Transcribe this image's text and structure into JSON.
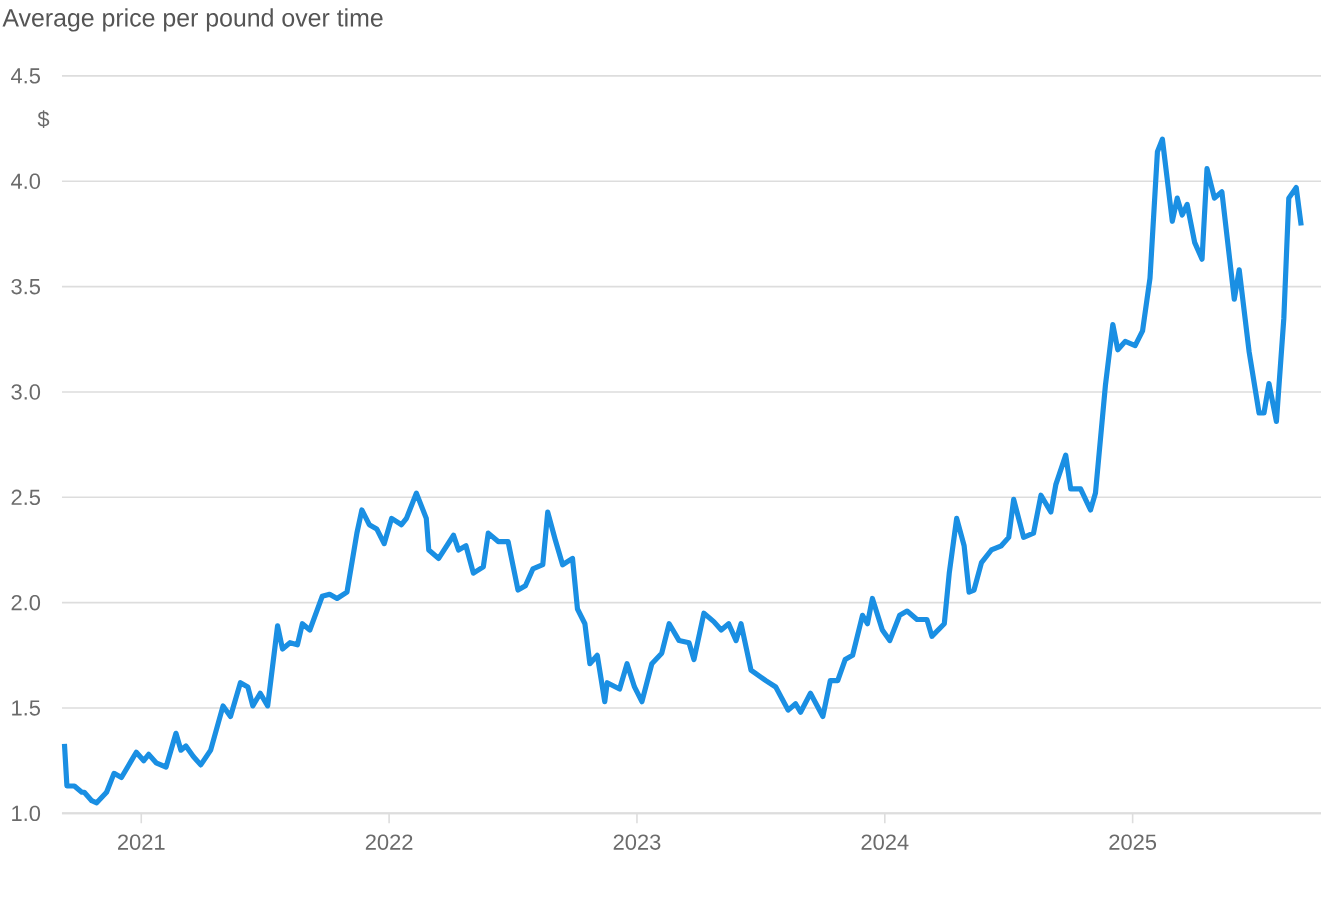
{
  "chart_data": {
    "type": "line",
    "title": "Average price per pound over time",
    "ylabel": "$",
    "xlim": [
      2020.68,
      2025.76
    ],
    "ylim": [
      1.0,
      4.5
    ],
    "xticks": [
      2021,
      2022,
      2023,
      2024,
      2025
    ],
    "yticks": [
      {
        "value": 1.0,
        "label": "1.0"
      },
      {
        "value": 1.5,
        "label": "1.5"
      },
      {
        "value": 2.0,
        "label": "2.0"
      },
      {
        "value": 2.5,
        "label": "2.5"
      },
      {
        "value": 3.0,
        "label": "3.0"
      },
      {
        "value": 3.5,
        "label": "3.5"
      },
      {
        "value": 4.0,
        "label": "4.0"
      },
      {
        "value": 4.5,
        "label": "4.5"
      }
    ],
    "grid": "y",
    "series": [
      {
        "color": "#1a8fe3",
        "x": [
          2020.69,
          2020.7,
          2020.73,
          2020.76,
          2020.77,
          2020.8,
          2020.82,
          2020.86,
          2020.89,
          2020.92,
          2020.96,
          2020.98,
          2021.01,
          2021.03,
          2021.06,
          2021.1,
          2021.14,
          2021.16,
          2021.18,
          2021.21,
          2021.24,
          2021.28,
          2021.33,
          2021.36,
          2021.4,
          2021.43,
          2021.45,
          2021.48,
          2021.51,
          2021.55,
          2021.57,
          2021.6,
          2021.63,
          2021.65,
          2021.68,
          2021.73,
          2021.76,
          2021.79,
          2021.83,
          2021.87,
          2021.89,
          2021.92,
          2021.95,
          2021.98,
          2022.01,
          2022.05,
          2022.07,
          2022.11,
          2022.15,
          2022.16,
          2022.2,
          2022.26,
          2022.28,
          2022.31,
          2022.34,
          2022.38,
          2022.4,
          2022.44,
          2022.48,
          2022.52,
          2022.55,
          2022.58,
          2022.62,
          2022.64,
          2022.67,
          2022.7,
          2022.74,
          2022.76,
          2022.79,
          2022.81,
          2022.84,
          2022.87,
          2022.88,
          2022.93,
          2022.96,
          2022.99,
          2023.02,
          2023.06,
          2023.1,
          2023.13,
          2023.17,
          2023.21,
          2023.23,
          2023.27,
          2023.31,
          2023.34,
          2023.37,
          2023.4,
          2023.42,
          2023.46,
          2023.52,
          2023.56,
          2023.61,
          2023.64,
          2023.66,
          2023.7,
          2023.75,
          2023.78,
          2023.81,
          2023.84,
          2023.87,
          2023.91,
          2023.93,
          2023.95,
          2023.99,
          2024.02,
          2024.06,
          2024.09,
          2024.13,
          2024.17,
          2024.19,
          2024.24,
          2024.26,
          2024.29,
          2024.32,
          2024.34,
          2024.36,
          2024.39,
          2024.43,
          2024.47,
          2024.5,
          2024.52,
          2024.56,
          2024.6,
          2024.63,
          2024.67,
          2024.69,
          2024.73,
          2024.75,
          2024.79,
          2024.83,
          2024.85,
          2024.89,
          2024.92,
          2024.94,
          2024.97,
          2025.01,
          2025.04,
          2025.07,
          2025.1,
          2025.12,
          2025.16,
          2025.18,
          2025.2,
          2025.22,
          2025.25,
          2025.28,
          2025.3,
          2025.33,
          2025.36,
          2025.41,
          2025.43,
          2025.47,
          2025.51,
          2025.53,
          2025.55,
          2025.58,
          2025.61,
          2025.63,
          2025.66,
          2025.68
        ],
        "values": [
          1.33,
          1.13,
          1.13,
          1.1,
          1.1,
          1.06,
          1.05,
          1.1,
          1.19,
          1.17,
          1.25,
          1.29,
          1.25,
          1.28,
          1.24,
          1.22,
          1.38,
          1.3,
          1.32,
          1.27,
          1.23,
          1.3,
          1.51,
          1.46,
          1.62,
          1.6,
          1.51,
          1.57,
          1.51,
          1.89,
          1.78,
          1.81,
          1.8,
          1.9,
          1.87,
          2.03,
          2.04,
          2.02,
          2.05,
          2.33,
          2.44,
          2.37,
          2.35,
          2.28,
          2.4,
          2.37,
          2.4,
          2.52,
          2.4,
          2.25,
          2.21,
          2.32,
          2.25,
          2.27,
          2.14,
          2.17,
          2.33,
          2.29,
          2.29,
          2.06,
          2.08,
          2.16,
          2.18,
          2.43,
          2.3,
          2.18,
          2.21,
          1.97,
          1.9,
          1.71,
          1.75,
          1.53,
          1.62,
          1.59,
          1.71,
          1.6,
          1.53,
          1.71,
          1.76,
          1.9,
          1.82,
          1.81,
          1.73,
          1.95,
          1.91,
          1.87,
          1.9,
          1.82,
          1.9,
          1.68,
          1.63,
          1.6,
          1.49,
          1.52,
          1.48,
          1.57,
          1.46,
          1.63,
          1.63,
          1.73,
          1.75,
          1.94,
          1.9,
          2.02,
          1.87,
          1.82,
          1.94,
          1.96,
          1.92,
          1.92,
          1.84,
          1.9,
          2.14,
          2.4,
          2.27,
          2.05,
          2.06,
          2.19,
          2.25,
          2.27,
          2.31,
          2.49,
          2.31,
          2.33,
          2.51,
          2.43,
          2.56,
          2.7,
          2.54,
          2.54,
          2.44,
          2.52,
          3.03,
          3.32,
          3.2,
          3.24,
          3.22,
          3.29,
          3.54,
          4.14,
          4.2,
          3.81,
          3.92,
          3.84,
          3.89,
          3.71,
          3.63,
          4.06,
          3.92,
          3.95,
          3.44,
          3.58,
          3.19,
          2.9,
          2.9,
          3.04,
          2.86,
          3.35,
          3.92,
          3.97,
          3.79
        ]
      }
    ]
  }
}
